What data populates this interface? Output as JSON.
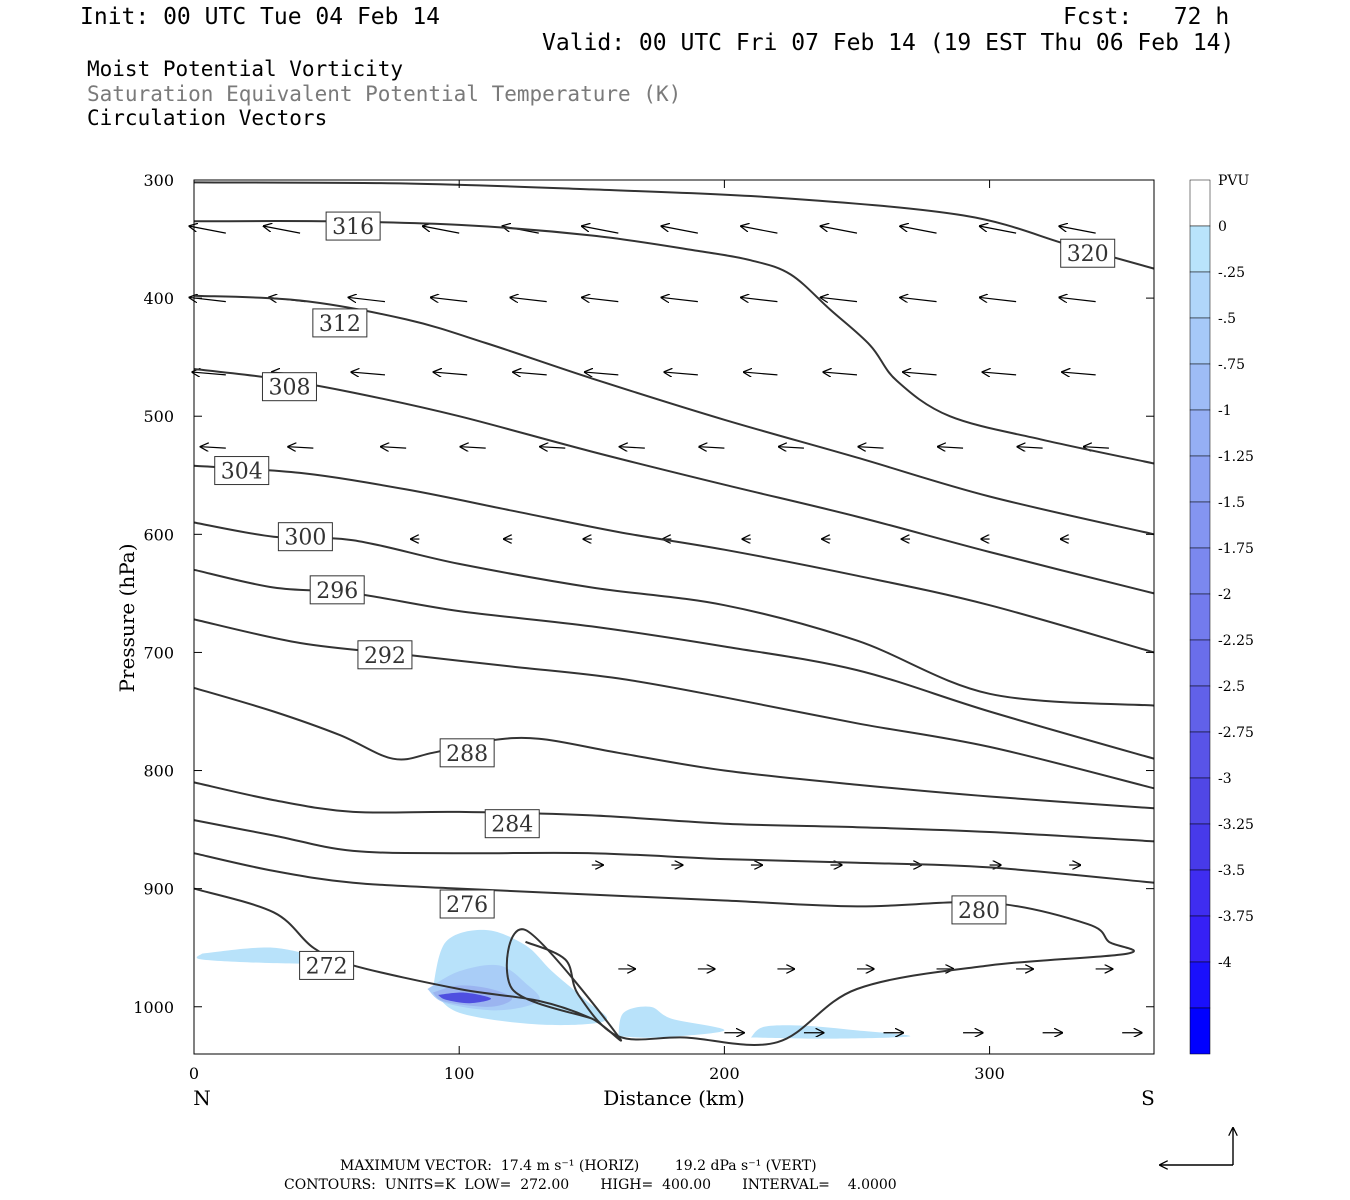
{
  "header": {
    "init": "Init: 00 UTC Tue 04 Feb 14",
    "fcst": "Fcst:   72 h",
    "valid": "Valid: 00 UTC Fri 07 Feb 14 (19 EST Thu 06 Feb 14)",
    "field1": "Moist Potential Vorticity",
    "field2": "Saturation Equivalent Potential Temperature (K)",
    "field3": "Circulation Vectors"
  },
  "footer": {
    "max_vector": "MAXIMUM VECTOR:  17.4 m s⁻¹ (HORIZ)        19.2 dPa s⁻¹ (VERT)",
    "contours": "CONTOURS:  UNITS=K  LOW=  272.00       HIGH=  400.00       INTERVAL=    4.0000"
  },
  "colors": {
    "line": "#333333",
    "mpv_light": "#b8e2fa",
    "mpv_mid": "#9bb4f0",
    "mpv_dark": "#4f4fe0"
  },
  "chart_data": {
    "type": "cross-section",
    "xlabel": "Distance (km)",
    "ylabel": "Pressure (hPa)",
    "xlim": [
      0,
      362
    ],
    "ylim": [
      300,
      1040
    ],
    "x_ticks": [
      0,
      100,
      200,
      300
    ],
    "y_ticks": [
      300,
      400,
      500,
      600,
      700,
      800,
      900,
      1000
    ],
    "x_end_labels": {
      "left": "N",
      "right": "S"
    },
    "colorbar": {
      "unit": "PVU",
      "tick_labels": [
        "0",
        "-.25",
        "-.5",
        "-.75",
        "-1",
        "-1.25",
        "-1.5",
        "-1.75",
        "-2",
        "-2.25",
        "-2.5",
        "-2.75",
        "-3",
        "-3.25",
        "-3.5",
        "-3.75",
        "-4"
      ],
      "colors": [
        "#ffffff",
        "#b9e4fb",
        "#b0d6fa",
        "#a6c9f8",
        "#9ebcf6",
        "#95aff4",
        "#8da2f2",
        "#8495f1",
        "#7b88ef",
        "#737bed",
        "#6a6eeb",
        "#6161e9",
        "#5954e8",
        "#5047e6",
        "#473aea",
        "#3f2df0",
        "#3620f6",
        "#1a10fc",
        "#0000ff"
      ]
    },
    "isentropes": [
      {
        "label": "316",
        "label_at": [
          60,
          339
        ],
        "points": [
          [
            0,
            335
          ],
          [
            50,
            335
          ],
          [
            100,
            338
          ],
          [
            150,
            347
          ],
          [
            190,
            360
          ],
          [
            210,
            368
          ],
          [
            225,
            380
          ],
          [
            240,
            410
          ],
          [
            255,
            440
          ],
          [
            265,
            470
          ],
          [
            285,
            500
          ],
          [
            320,
            520
          ],
          [
            362,
            540
          ]
        ]
      },
      {
        "label": "320",
        "label_at": [
          337,
          362
        ],
        "points": [
          [
            0,
            302
          ],
          [
            80,
            303
          ],
          [
            150,
            308
          ],
          [
            220,
            315
          ],
          [
            290,
            330
          ],
          [
            330,
            355
          ],
          [
            362,
            375
          ]
        ]
      },
      {
        "label": "312",
        "label_at": [
          55,
          421
        ],
        "points": [
          [
            0,
            398
          ],
          [
            40,
            402
          ],
          [
            80,
            418
          ],
          [
            110,
            438
          ],
          [
            150,
            468
          ],
          [
            200,
            503
          ],
          [
            250,
            535
          ],
          [
            300,
            568
          ],
          [
            362,
            600
          ]
        ]
      },
      {
        "label": "308",
        "label_at": [
          36,
          475
        ],
        "points": [
          [
            0,
            460
          ],
          [
            30,
            468
          ],
          [
            60,
            480
          ],
          [
            100,
            500
          ],
          [
            150,
            530
          ],
          [
            200,
            558
          ],
          [
            250,
            585
          ],
          [
            300,
            615
          ],
          [
            362,
            650
          ]
        ]
      },
      {
        "label": "304",
        "label_at": [
          18,
          546
        ],
        "points": [
          [
            0,
            542
          ],
          [
            40,
            548
          ],
          [
            80,
            562
          ],
          [
            120,
            580
          ],
          [
            160,
            598
          ],
          [
            200,
            613
          ],
          [
            250,
            635
          ],
          [
            300,
            660
          ],
          [
            362,
            700
          ]
        ]
      },
      {
        "label": "300",
        "label_at": [
          42,
          602
        ],
        "points": [
          [
            0,
            590
          ],
          [
            30,
            602
          ],
          [
            60,
            605
          ],
          [
            100,
            625
          ],
          [
            150,
            645
          ],
          [
            200,
            660
          ],
          [
            250,
            690
          ],
          [
            300,
            735
          ],
          [
            362,
            745
          ]
        ]
      },
      {
        "label": "296",
        "label_at": [
          54,
          647
        ],
        "points": [
          [
            0,
            630
          ],
          [
            30,
            645
          ],
          [
            60,
            650
          ],
          [
            100,
            665
          ],
          [
            150,
            678
          ],
          [
            200,
            695
          ],
          [
            250,
            715
          ],
          [
            300,
            750
          ],
          [
            362,
            790
          ]
        ]
      },
      {
        "label": "292",
        "label_at": [
          72,
          702
        ],
        "points": [
          [
            0,
            672
          ],
          [
            40,
            692
          ],
          [
            80,
            702
          ],
          [
            120,
            712
          ],
          [
            160,
            722
          ],
          [
            200,
            738
          ],
          [
            250,
            760
          ],
          [
            300,
            780
          ],
          [
            362,
            815
          ]
        ]
      },
      {
        "label": "288",
        "label_at": [
          103,
          785
        ],
        "points": [
          [
            0,
            730
          ],
          [
            30,
            750
          ],
          [
            55,
            770
          ],
          [
            75,
            790
          ],
          [
            90,
            785
          ],
          [
            110,
            775
          ],
          [
            130,
            773
          ],
          [
            160,
            785
          ],
          [
            200,
            800
          ],
          [
            250,
            812
          ],
          [
            300,
            822
          ],
          [
            362,
            832
          ]
        ]
      },
      {
        "label": "284",
        "label_at": [
          120,
          845
        ],
        "points": [
          [
            0,
            810
          ],
          [
            30,
            825
          ],
          [
            60,
            835
          ],
          [
            100,
            835
          ],
          [
            150,
            838
          ],
          [
            200,
            845
          ],
          [
            250,
            848
          ],
          [
            300,
            852
          ],
          [
            362,
            860
          ]
        ]
      },
      {
        "label": "280",
        "label_at": [
          296,
          918
        ],
        "points": [
          [
            0,
            842
          ],
          [
            30,
            855
          ],
          [
            60,
            868
          ],
          [
            100,
            870
          ],
          [
            150,
            870
          ],
          [
            200,
            875
          ],
          [
            250,
            878
          ],
          [
            300,
            882
          ],
          [
            362,
            895
          ]
        ]
      },
      {
        "label": "276",
        "label_at": [
          103,
          913
        ],
        "points": [
          [
            0,
            870
          ],
          [
            30,
            885
          ],
          [
            60,
            895
          ],
          [
            100,
            900
          ],
          [
            150,
            905
          ],
          [
            200,
            910
          ],
          [
            250,
            915
          ],
          [
            300,
            912
          ],
          [
            337,
            930
          ],
          [
            345,
            945
          ],
          [
            352,
            955
          ],
          [
            300,
            965
          ],
          [
            250,
            985
          ],
          [
            220,
            1030
          ],
          [
            185,
            1026
          ],
          [
            160,
            1025
          ],
          [
            145,
            990
          ],
          [
            140,
            960
          ],
          [
            125,
            945
          ]
        ]
      },
      {
        "label": "272",
        "label_at": [
          50,
          965
        ],
        "points": [
          [
            0,
            900
          ],
          [
            30,
            920
          ],
          [
            45,
            950
          ],
          [
            60,
            965
          ],
          [
            100,
            985
          ],
          [
            130,
            995
          ],
          [
            150,
            1010
          ],
          [
            160,
            1025
          ],
          [
            125,
            935
          ],
          [
            120,
            985
          ],
          [
            150,
            1010
          ]
        ]
      }
    ],
    "mpv_regions": [
      {
        "level": -0.25,
        "points": [
          [
            3,
            955
          ],
          [
            30,
            950
          ],
          [
            50,
            962
          ],
          [
            30,
            963
          ],
          [
            3,
            960
          ]
        ]
      },
      {
        "level": -0.25,
        "points": [
          [
            90,
            985
          ],
          [
            95,
            945
          ],
          [
            110,
            935
          ],
          [
            125,
            948
          ],
          [
            135,
            970
          ],
          [
            148,
            995
          ],
          [
            155,
            1012
          ],
          [
            130,
            1015
          ],
          [
            100,
            1005
          ]
        ]
      },
      {
        "level": -0.5,
        "points": [
          [
            88,
            985
          ],
          [
            100,
            970
          ],
          [
            115,
            965
          ],
          [
            125,
            980
          ],
          [
            130,
            995
          ],
          [
            115,
            1003
          ],
          [
            95,
            997
          ]
        ]
      },
      {
        "level": -1.25,
        "points": [
          [
            90,
            988
          ],
          [
            100,
            982
          ],
          [
            112,
            985
          ],
          [
            120,
            993
          ],
          [
            112,
            1000
          ],
          [
            95,
            996
          ]
        ]
      },
      {
        "level": -3.0,
        "points": [
          [
            92,
            990
          ],
          [
            102,
            988
          ],
          [
            112,
            993
          ],
          [
            104,
            997
          ],
          [
            95,
            994
          ]
        ]
      },
      {
        "level": -0.25,
        "points": [
          [
            160,
            1025
          ],
          [
            162,
            1005
          ],
          [
            172,
            1000
          ],
          [
            180,
            1010
          ],
          [
            200,
            1020
          ],
          [
            175,
            1026
          ]
        ]
      },
      {
        "level": -0.25,
        "points": [
          [
            210,
            1026
          ],
          [
            215,
            1017
          ],
          [
            230,
            1016
          ],
          [
            250,
            1020
          ],
          [
            270,
            1025
          ],
          [
            240,
            1027
          ]
        ]
      }
    ]
  }
}
